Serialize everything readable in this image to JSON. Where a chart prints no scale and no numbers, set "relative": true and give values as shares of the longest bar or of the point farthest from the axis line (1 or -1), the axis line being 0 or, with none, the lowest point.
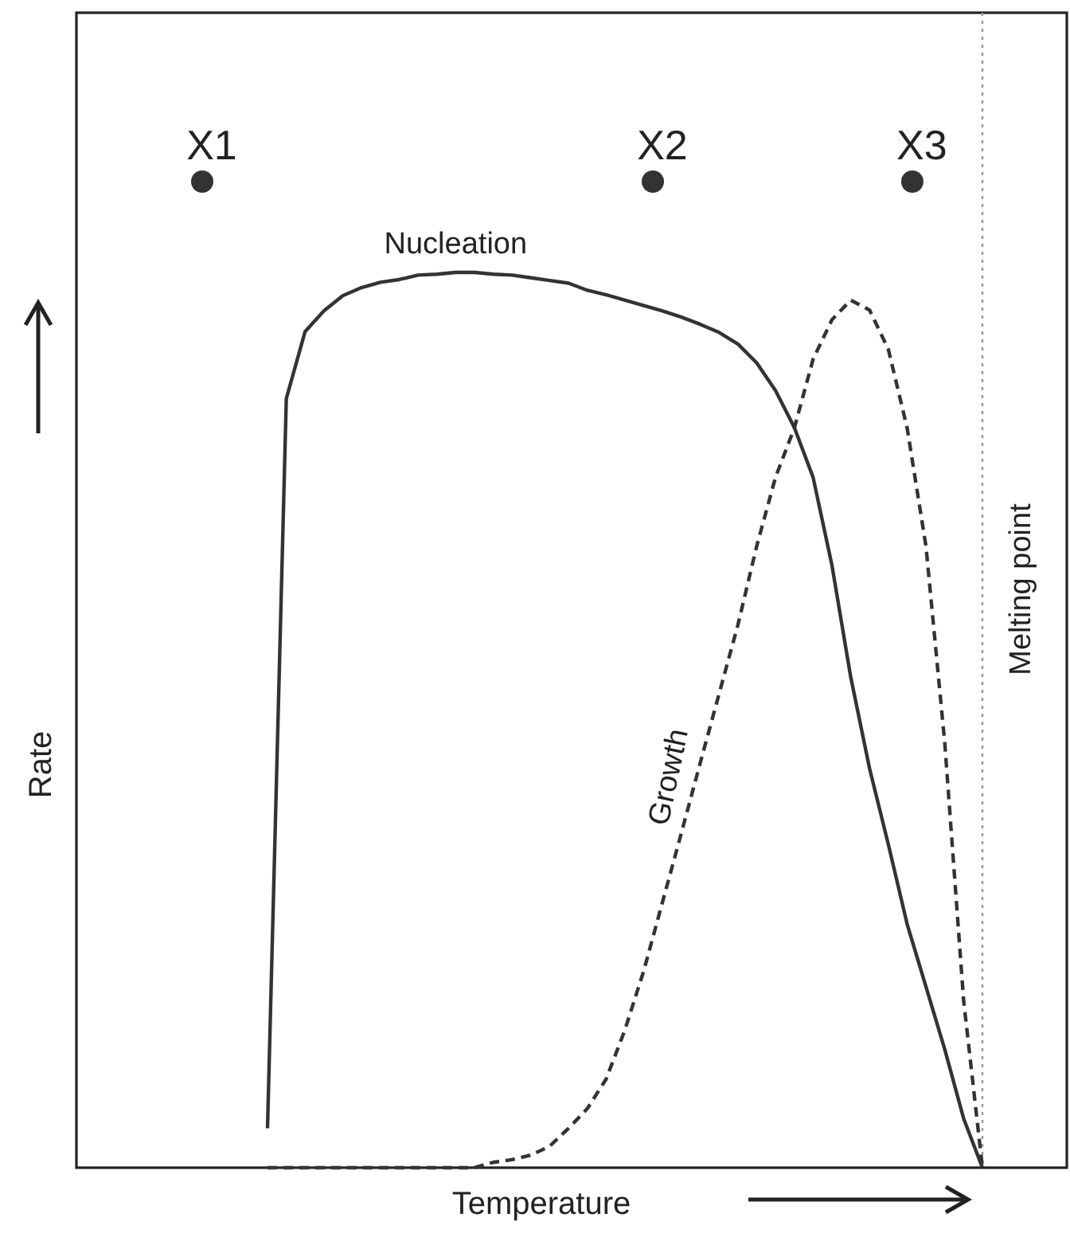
{
  "chart_data": {
    "type": "line",
    "relative": true,
    "xlabel": "Temperature",
    "categories": [
      null,
      null,
      null,
      null,
      null,
      null,
      null,
      null,
      null,
      null,
      null,
      null,
      null,
      null,
      null,
      null,
      null,
      null,
      null,
      null,
      null,
      null,
      null,
      null,
      null,
      null,
      null,
      null,
      null,
      null,
      null,
      null,
      null,
      null,
      null,
      null,
      null,
      null,
      null
    ],
    "series": [
      {
        "name": "Nucleation",
        "color": "#333333",
        "line_style": "solid",
        "marker": "none",
        "values": [
          0.044,
          0.859,
          0.934,
          0.957,
          0.974,
          0.983,
          0.989,
          0.992,
          0.997,
          0.998,
          1,
          1,
          0.998,
          0.997,
          0.994,
          0.991,
          0.988,
          0.98,
          0.975,
          0.969,
          0.963,
          0.957,
          0.95,
          0.942,
          0.933,
          0.92,
          0.899,
          0.868,
          0.827,
          0.771,
          0.673,
          0.548,
          0.446,
          0.361,
          0.272,
          0.202,
          0.132,
          0.055,
          0
        ]
      },
      {
        "name": "Growth",
        "color": "#333333",
        "line_style": "dashed",
        "marker": "none",
        "values": [
          0,
          0,
          0,
          0,
          0,
          0,
          0,
          0,
          0,
          0,
          0,
          0,
          0.006,
          0.009,
          0.014,
          0.024,
          0.044,
          0.066,
          0.099,
          0.154,
          0.22,
          0.297,
          0.374,
          0.452,
          0.529,
          0.606,
          0.694,
          0.771,
          0.826,
          0.903,
          0.947,
          0.969,
          0.958,
          0.914,
          0.826,
          0.694,
          0.474,
          0.187,
          0
        ]
      }
    ],
    "annotations": [
      "X1",
      "X2",
      "X3",
      "Rate"
    ],
    "ref_lines": [
      {
        "axis": "x",
        "label": "Melting point",
        "color": "#999999",
        "line_style": "dotted"
      }
    ]
  }
}
